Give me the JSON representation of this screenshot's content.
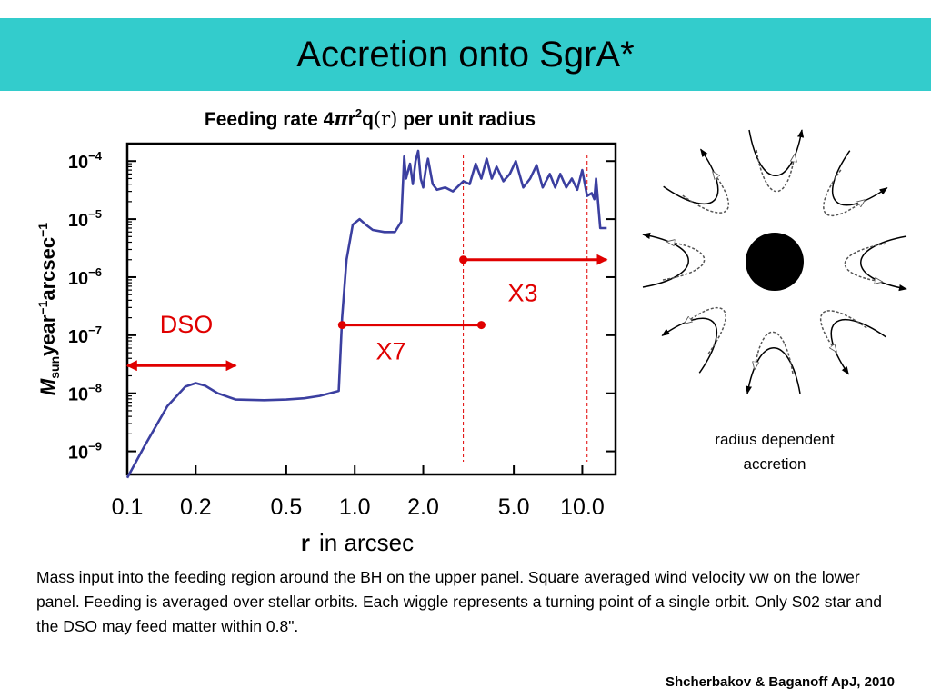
{
  "slide": {
    "title": "Accretion onto SgrA*",
    "caption": "Mass input into the feeding region around the BH on the upper panel. Square averaged wind velocity vw on the lower panel. Feeding is averaged over stellar orbits. Each wiggle represents a turning point of a single orbit. Only S02 star and the DSO may feed matter within 0.8\".",
    "citation": "Shcherbakov & Baganoff ApJ, 2010",
    "side_label": "radius dependent accretion"
  },
  "colors": {
    "title_bar": "#33cccc",
    "curve": "#3b3fa0",
    "annotation": "#e00000"
  },
  "chart_data": {
    "type": "line",
    "title": "Feeding rate 4πr²q(r) per unit radius",
    "ylabel": "M_sun year⁻¹ arcsec⁻¹",
    "xlabel_bold": "r",
    "xlabel_rest": "in arcsec",
    "x_scale": "log",
    "y_scale": "log",
    "xlim": [
      0.1,
      14
    ],
    "ylim": [
      4e-10,
      0.0002
    ],
    "x_ticks": [
      {
        "value": 0.1,
        "label": "0.1"
      },
      {
        "value": 0.2,
        "label": "0.2"
      },
      {
        "value": 0.5,
        "label": "0.5"
      },
      {
        "value": 1.0,
        "label": "1.0"
      },
      {
        "value": 2.0,
        "label": "2.0"
      },
      {
        "value": 5.0,
        "label": "5.0"
      },
      {
        "value": 10.0,
        "label": "10.0"
      }
    ],
    "y_ticks": [
      {
        "value": 0.0001,
        "base": "10",
        "exp": "−4"
      },
      {
        "value": 1e-05,
        "base": "10",
        "exp": "−5"
      },
      {
        "value": 1e-06,
        "base": "10",
        "exp": "−6"
      },
      {
        "value": 1e-07,
        "base": "10",
        "exp": "−7"
      },
      {
        "value": 1e-08,
        "base": "10",
        "exp": "−8"
      },
      {
        "value": 1e-09,
        "base": "10",
        "exp": "−9"
      }
    ],
    "grid": false,
    "series": [
      {
        "x": [
          0.1,
          0.12,
          0.15,
          0.18,
          0.2,
          0.22,
          0.25,
          0.3,
          0.4,
          0.5,
          0.6,
          0.7,
          0.85,
          0.88,
          0.92,
          0.98,
          1.05,
          1.12,
          1.2,
          1.35,
          1.5,
          1.6,
          1.65,
          1.68,
          1.75,
          1.8,
          1.85,
          1.9,
          1.95,
          2.0,
          2.05,
          2.1,
          2.2,
          2.3,
          2.5,
          2.7,
          3.0,
          3.2,
          3.4,
          3.6,
          3.8,
          4.0,
          4.2,
          4.5,
          4.8,
          5.1,
          5.5,
          5.9,
          6.3,
          6.7,
          7.2,
          7.6,
          8.0,
          8.5,
          9.0,
          9.5,
          10.0,
          10.5,
          11.0,
          11.3,
          11.5,
          12.0,
          12.8
        ],
        "y": [
          3.5e-10,
          1.3e-09,
          6e-09,
          1.3e-08,
          1.5e-08,
          1.35e-08,
          1e-08,
          7.8e-09,
          7.6e-09,
          7.8e-09,
          8.2e-09,
          9e-09,
          1.1e-08,
          2e-07,
          2e-06,
          8e-06,
          1e-05,
          8e-06,
          6.5e-06,
          6e-06,
          6e-06,
          9e-06,
          0.00012,
          5e-05,
          9e-05,
          4e-05,
          0.0001,
          0.00015,
          5e-05,
          3.5e-05,
          7e-05,
          0.00011,
          4e-05,
          3.2e-05,
          3.5e-05,
          3e-05,
          4.5e-05,
          4e-05,
          9e-05,
          5e-05,
          0.00011,
          5e-05,
          8e-05,
          4.5e-05,
          6e-05,
          0.0001,
          3.5e-05,
          5e-05,
          8.5e-05,
          3.5e-05,
          6e-05,
          3.5e-05,
          6e-05,
          3.5e-05,
          5e-05,
          3.2e-05,
          7e-05,
          2.5e-05,
          2.8e-05,
          2.2e-05,
          5e-05,
          7e-06,
          7e-06
        ]
      }
    ],
    "vlines": [
      3.0,
      10.5
    ],
    "annotations": [
      {
        "label": "DSO",
        "x_from": 0.1,
        "x_to": 0.3,
        "y": 3e-08,
        "double_headed": true
      },
      {
        "label": "X7",
        "x_from": 0.88,
        "x_to": 3.6,
        "y": 1.5e-07,
        "endpoints": "dots"
      },
      {
        "label": "X3",
        "x_from": 3.0,
        "x_to": 12.8,
        "y": 2e-06,
        "endpoints": "dot-arrow"
      }
    ]
  }
}
